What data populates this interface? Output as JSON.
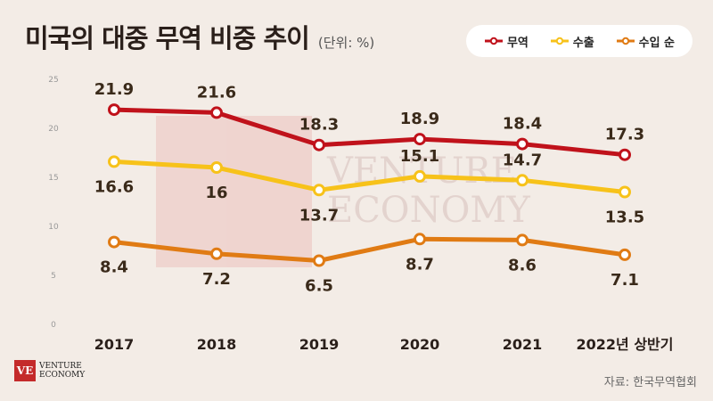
{
  "title": "미국의 대중 무역 비중 추이",
  "unit": "(단위: %)",
  "source": "자료: 한국무역협회",
  "brand": {
    "mark": "VE",
    "line1": "VENTURE",
    "line2": "ECONOMY",
    "color": "#c42a2a"
  },
  "chart_data": {
    "type": "line",
    "categories": [
      "2017",
      "2018",
      "2019",
      "2020",
      "2021",
      "2022년 상반기"
    ],
    "ylim": [
      0,
      25
    ],
    "yticks": [
      "0",
      "5",
      "10",
      "15",
      "20",
      "25"
    ],
    "grid": false,
    "legend": "top-right",
    "series": [
      {
        "name": "무역",
        "color": "#c0121b",
        "values": [
          21.9,
          21.6,
          18.3,
          18.9,
          18.4,
          17.3
        ]
      },
      {
        "name": "수출",
        "color": "#f7c21a",
        "values": [
          16.6,
          16,
          13.7,
          15.1,
          14.7,
          13.5
        ]
      },
      {
        "name": "수입 순",
        "color": "#e07b14",
        "values": [
          8.4,
          7.2,
          6.5,
          8.7,
          8.6,
          7.1
        ]
      }
    ]
  }
}
